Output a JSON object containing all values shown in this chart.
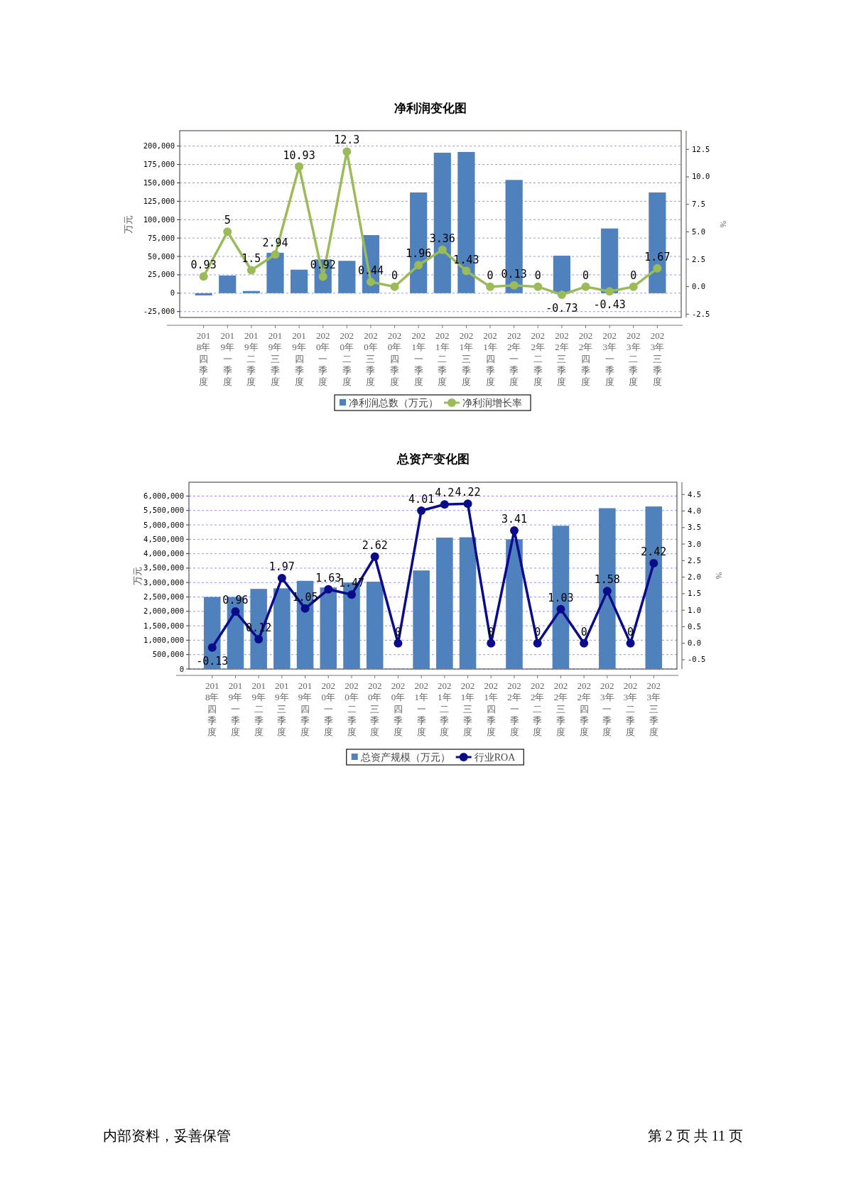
{
  "chart_data": [
    {
      "type": "bar",
      "title": "净利润变化图",
      "ylabel": "万元",
      "y2label": "%",
      "grid": "y",
      "legend": "bottom",
      "marker": "circle",
      "categories": [
        "2018年四季度",
        "2019年一季度",
        "2019年二季度",
        "2019年三季度",
        "2019年四季度",
        "2020年一季度",
        "2020年二季度",
        "2020年三季度",
        "2020年四季度",
        "2021年一季度",
        "2021年二季度",
        "2021年三季度",
        "2021年四季度",
        "2022年一季度",
        "2022年二季度",
        "2022年三季度",
        "2022年四季度",
        "2023年一季度",
        "2023年二季度",
        "2023年三季度"
      ],
      "series": [
        {
          "name": "净利润总数（万元）",
          "color": "#4f81bd",
          "values": [
            -3000,
            24000,
            3000,
            55000,
            32000,
            46000,
            44000,
            79000,
            null,
            137000,
            191000,
            192000,
            null,
            154000,
            null,
            51000,
            null,
            88000,
            null,
            137000
          ]
        },
        {
          "name": "净利润增长率",
          "type": "line",
          "axis": "y2",
          "color": "#9bbb59",
          "values": [
            0.93,
            5,
            1.5,
            2.94,
            10.93,
            0.92,
            12.3,
            0.44,
            0,
            1.96,
            3.36,
            1.43,
            0,
            0.13,
            0,
            -0.73,
            0,
            -0.43,
            0,
            1.67
          ],
          "value_labels": [
            "0.93",
            "5",
            "1.5",
            "2.94",
            "10.93",
            "0.92",
            "12.3",
            "0.44",
            "0",
            "1.96",
            "3.36",
            "1.43",
            "0",
            "0.13",
            "0",
            "-0.73",
            "0",
            "-0.43",
            "0",
            "1.67"
          ]
        }
      ],
      "ylim": [
        -33000,
        221000
      ],
      "yticks": [
        {
          "value": -25000,
          "label": "-25,000"
        },
        0,
        {
          "value": 25000,
          "label": "25,000"
        },
        {
          "value": 50000,
          "label": "50,000"
        },
        {
          "value": 75000,
          "label": "75,000"
        },
        {
          "value": 100000,
          "label": "100,000"
        },
        {
          "value": 125000,
          "label": "125,000"
        },
        {
          "value": 150000,
          "label": "150,000"
        },
        {
          "value": 175000,
          "label": "175,000"
        },
        {
          "value": 200000,
          "label": "200,000"
        }
      ],
      "y2lim": [
        -2.8,
        14.2
      ],
      "y2ticks": [
        -2.5,
        {
          "value": 0,
          "label": "0.0"
        },
        2.5,
        {
          "value": 5,
          "label": "5.0"
        },
        7.5,
        {
          "value": 10,
          "label": "10.0"
        },
        12.5
      ]
    },
    {
      "type": "bar",
      "title": "总资产变化图",
      "ylabel": "万元",
      "y2label": "%",
      "grid": "y",
      "legend": "bottom",
      "marker": "circle",
      "categories": [
        "2018年四季度",
        "2019年一季度",
        "2019年二季度",
        "2019年三季度",
        "2019年四季度",
        "2020年一季度",
        "2020年二季度",
        "2020年三季度",
        "2020年四季度",
        "2021年一季度",
        "2021年二季度",
        "2021年三季度",
        "2021年四季度",
        "2022年一季度",
        "2022年二季度",
        "2022年三季度",
        "2022年四季度",
        "2023年一季度",
        "2023年二季度",
        "2023年三季度"
      ],
      "series": [
        {
          "name": "总资产规模（万元）",
          "color": "#4f81bd",
          "values": [
            2500000,
            2500000,
            2780000,
            2800000,
            3060000,
            2830000,
            3000000,
            3030000,
            null,
            3420000,
            4560000,
            4570000,
            null,
            4500000,
            null,
            4970000,
            null,
            5580000,
            null,
            5640000
          ]
        },
        {
          "name": "行业ROA",
          "type": "line",
          "axis": "y2",
          "color": "#0a0a8c",
          "values": [
            -0.13,
            0.96,
            0.12,
            1.97,
            1.05,
            1.63,
            1.47,
            2.62,
            0,
            4.01,
            4.2,
            4.22,
            0,
            3.41,
            0,
            1.03,
            0,
            1.58,
            0,
            2.42
          ],
          "value_labels": [
            "-0.13",
            "0.96",
            "0.12",
            "1.97",
            "1.05",
            "1.63",
            "1.47",
            "2.62",
            "0",
            "4.01",
            "4.2",
            "4.22",
            "0",
            "3.41",
            "0",
            "1.03",
            "0",
            "1.58",
            "0",
            "2.42"
          ]
        }
      ],
      "ylim": [
        0,
        6480000
      ],
      "yticks": [
        0,
        {
          "value": 500000,
          "label": "500,000"
        },
        {
          "value": 1000000,
          "label": "1,000,000"
        },
        {
          "value": 1500000,
          "label": "1,500,000"
        },
        {
          "value": 2000000,
          "label": "2,000,000"
        },
        {
          "value": 2500000,
          "label": "2,500,000"
        },
        {
          "value": 3000000,
          "label": "3,000,000"
        },
        {
          "value": 3500000,
          "label": "3,500,000"
        },
        {
          "value": 4000000,
          "label": "4,000,000"
        },
        {
          "value": 4500000,
          "label": "4,500,000"
        },
        {
          "value": 5000000,
          "label": "5,000,000"
        },
        {
          "value": 5500000,
          "label": "5,500,000"
        },
        {
          "value": 6000000,
          "label": "6,000,000"
        }
      ],
      "y2lim": [
        -0.78,
        4.87
      ],
      "y2ticks": [
        -0.5,
        {
          "value": 0,
          "label": "0.0"
        },
        0.5,
        {
          "value": 1,
          "label": "1.0"
        },
        1.5,
        {
          "value": 2,
          "label": "2.0"
        },
        2.5,
        {
          "value": 3,
          "label": "3.0"
        },
        3.5,
        {
          "value": 4,
          "label": "4.0"
        },
        4.5
      ],
      "annotations": [
        "内部资料，妥善保管",
        "第 2 页   共 11 页"
      ]
    }
  ]
}
